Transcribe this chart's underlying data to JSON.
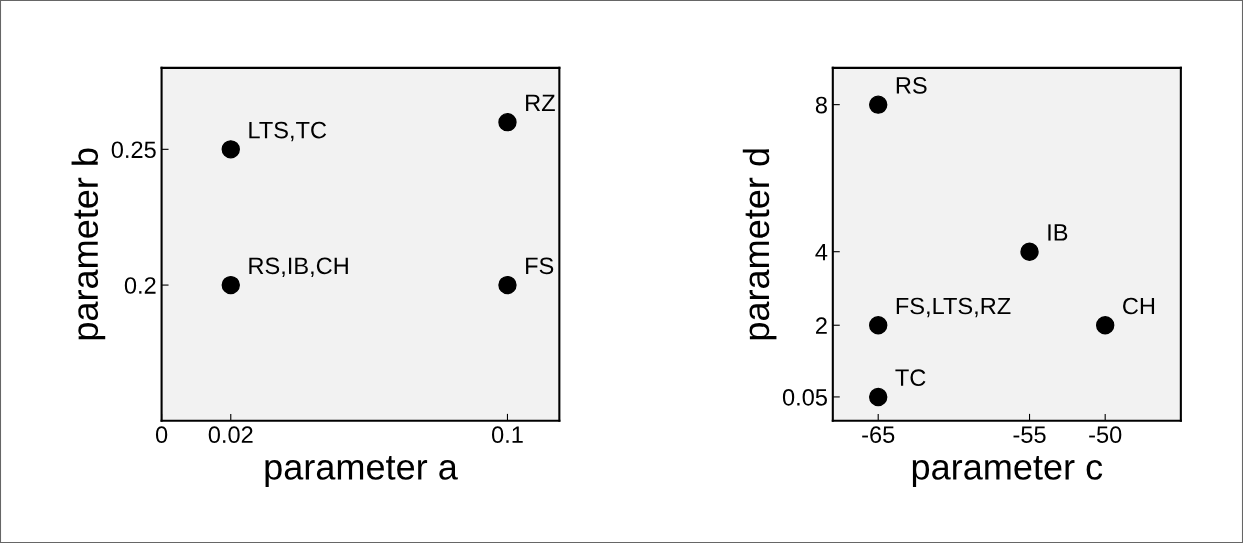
{
  "chart_data": [
    {
      "type": "scatter",
      "xlabel": "parameter a",
      "ylabel": "parameter b",
      "x": [
        0.02,
        0.1,
        0.02,
        0.1
      ],
      "values": [
        0.25,
        0.26,
        0.2,
        0.2
      ],
      "color": "#000000",
      "marker": "circle",
      "xlim": [
        0,
        0.115
      ],
      "ylim": [
        0.15,
        0.28
      ],
      "xticks": [
        0,
        0.02,
        0.1
      ],
      "yticks": [
        0.2,
        0.25
      ],
      "annotations": [
        {
          "text": "LTS,TC",
          "x": 0.02,
          "y": 0.25
        },
        {
          "text": "RZ",
          "x": 0.1,
          "y": 0.26
        },
        {
          "text": "RS,IB,CH",
          "x": 0.02,
          "y": 0.2
        },
        {
          "text": "FS",
          "x": 0.1,
          "y": 0.2
        }
      ]
    },
    {
      "type": "scatter",
      "xlabel": "parameter c",
      "ylabel": "parameter d",
      "x": [
        -65,
        -55,
        -65,
        -50,
        -65
      ],
      "values": [
        8,
        4,
        2,
        2,
        0.05
      ],
      "color": "#000000",
      "marker": "circle",
      "xlim": [
        -68,
        -45
      ],
      "ylim": [
        -0.6,
        9
      ],
      "xticks": [
        -65,
        -55,
        -50
      ],
      "yticks": [
        0.05,
        2,
        4,
        8
      ],
      "annotations": [
        {
          "text": "RS",
          "x": -65,
          "y": 8
        },
        {
          "text": "IB",
          "x": -55,
          "y": 4
        },
        {
          "text": "FS,LTS,RZ",
          "x": -65,
          "y": 2
        },
        {
          "text": "CH",
          "x": -50,
          "y": 2
        },
        {
          "text": "TC",
          "x": -65,
          "y": 0.05
        }
      ]
    }
  ]
}
